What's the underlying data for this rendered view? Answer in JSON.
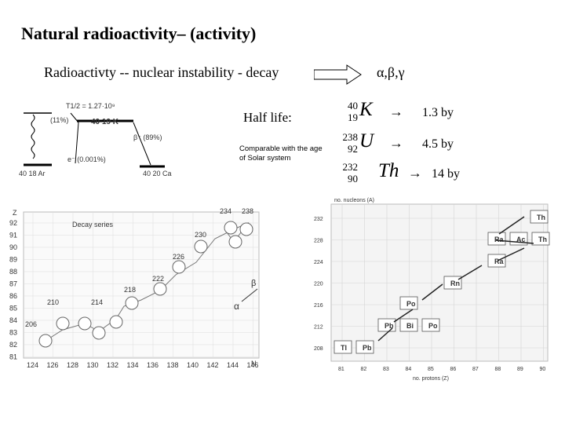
{
  "title": "Natural radioactivity– (activity)",
  "subtitle": "Radioactivty -- nuclear instability - decay",
  "decay_types": "α,β,γ",
  "half_life_label": "Half life:",
  "comparable_note": "Comparable with the age of Solar system",
  "isotopes": [
    {
      "mass": "40",
      "z": "19",
      "symbol": "K",
      "arrow": "→",
      "half_life": "1.3  by"
    },
    {
      "mass": "238",
      "z": "92",
      "symbol": "U",
      "arrow": "→",
      "half_life": "4.5  by"
    },
    {
      "mass": "232",
      "z": "90",
      "symbol": "Th",
      "arrow": "→",
      "half_life": "14  by"
    }
  ],
  "k_diagram": {
    "k_label": "40 19 K",
    "half_life_text": "T1/2 = 1.27·10⁹",
    "branch_11": "(11%)",
    "branch_89": "β⁻ (89%)",
    "ec_text": "e⁻ (0.001%)",
    "ar_label": "40 18 Ar",
    "ca_label": "40 20 Ca"
  },
  "decay_series": {
    "label": "Decay series",
    "z_axis": "Z",
    "n_axis": "N",
    "z_ticks": [
      "92",
      "91",
      "90",
      "89",
      "88",
      "87",
      "86",
      "85",
      "84",
      "83",
      "82",
      "81"
    ],
    "n_ticks": [
      "124",
      "126",
      "128",
      "130",
      "132",
      "134",
      "136",
      "138",
      "140",
      "142",
      "144",
      "146"
    ],
    "masses": [
      "234",
      "238",
      "230",
      "226",
      "222",
      "218",
      "214",
      "210",
      "206"
    ],
    "alpha": "α",
    "beta": "β"
  },
  "chart_right": {
    "y_label": "no. nucleons (A)",
    "x_label": "no. protons (Z)",
    "y_ticks": [
      "232",
      "228",
      "224",
      "220",
      "216",
      "212",
      "208"
    ],
    "x_ticks": [
      "81",
      "82",
      "83",
      "84",
      "85",
      "86",
      "87",
      "88",
      "89",
      "90"
    ],
    "nuclides": [
      "Th",
      "Ra",
      "Ac",
      "Th",
      "Ra",
      "Rn",
      "Po",
      "Pb",
      "Bi",
      "Po",
      "Tl",
      "Pb"
    ]
  }
}
